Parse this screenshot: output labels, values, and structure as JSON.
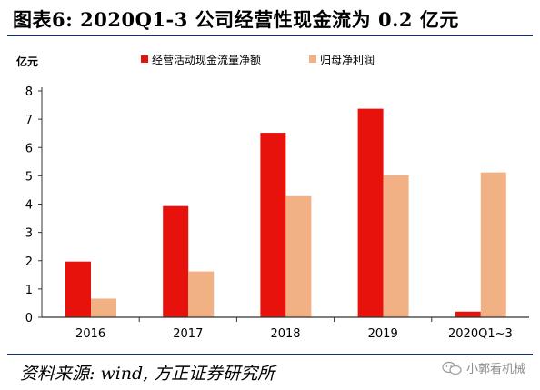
{
  "figure": {
    "title": "图表6:   2020Q1-3 公司经营性现金流为 0.2 亿元",
    "source": "资料来源: wind, 方正证券研究所",
    "watermark": "小郭看机械"
  },
  "chart_data": {
    "type": "bar",
    "unit_label": "亿元",
    "categories": [
      "2016",
      "2017",
      "2018",
      "2019",
      "2020Q1~3"
    ],
    "series": [
      {
        "name": "经营活动现金流量净额",
        "color": "#e8120d",
        "values": [
          1.97,
          3.93,
          6.52,
          7.37,
          0.2
        ]
      },
      {
        "name": "归母净利润",
        "color": "#f2b184",
        "values": [
          0.66,
          1.62,
          4.28,
          5.02,
          5.12
        ]
      }
    ],
    "ylim": [
      0,
      8
    ],
    "yticks": [
      0,
      1,
      2,
      3,
      4,
      5,
      6,
      7,
      8
    ],
    "legend": "top-center",
    "grid": false
  }
}
